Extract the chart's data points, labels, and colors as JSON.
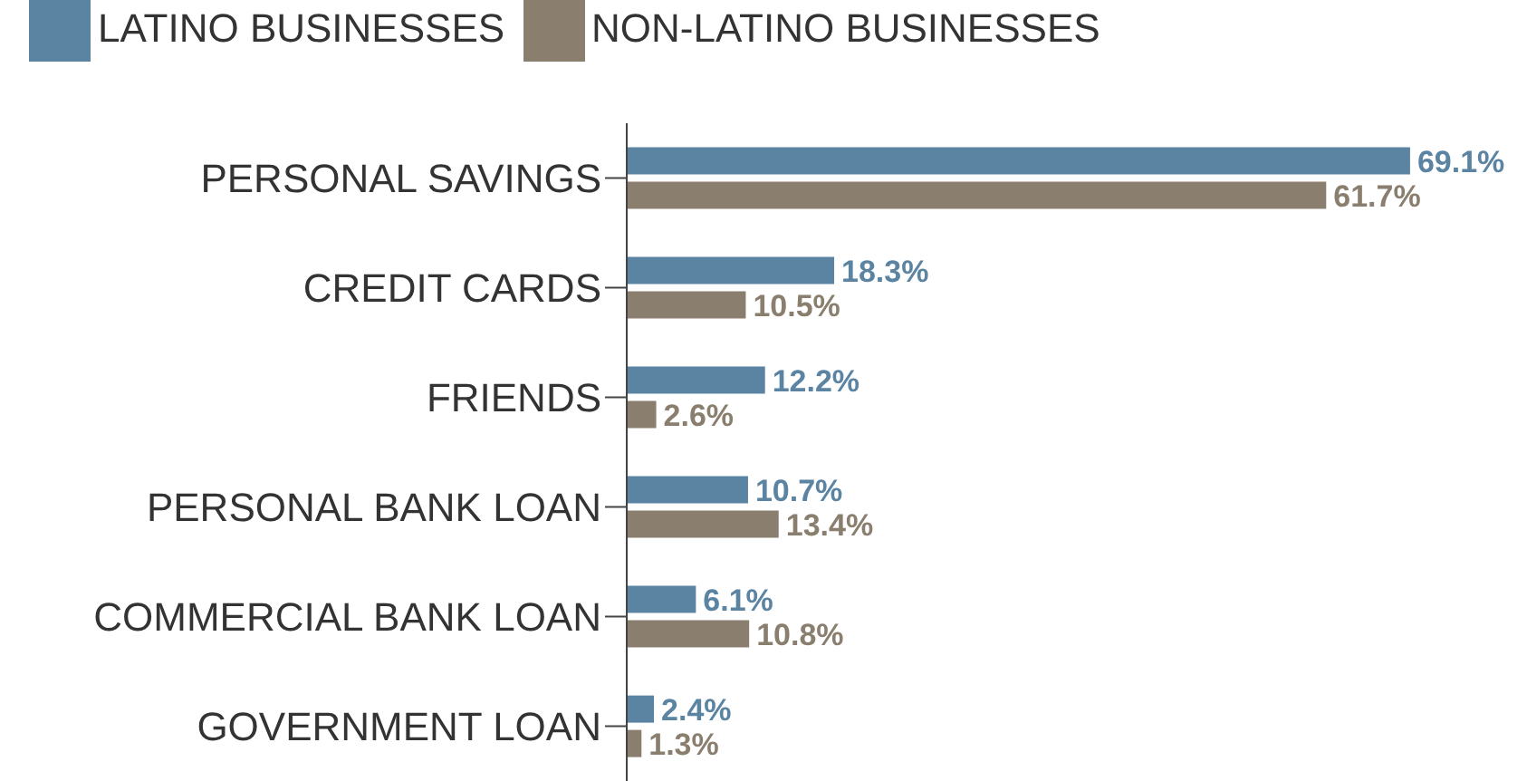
{
  "chart_data": {
    "type": "bar",
    "orientation": "horizontal",
    "legend": "top left",
    "categories": [
      "PERSONAL SAVINGS",
      "CREDIT CARDS",
      "FRIENDS",
      "PERSONAL BANK LOAN",
      "COMMERCIAL BANK LOAN",
      "GOVERNMENT LOAN"
    ],
    "series": [
      {
        "name": "LATINO BUSINESSES",
        "color": "#5b84a3",
        "values": [
          69.1,
          18.3,
          12.2,
          10.7,
          6.1,
          2.4
        ],
        "value_labels": [
          "69.1%",
          "18.3%",
          "12.2%",
          "10.7%",
          "6.1%",
          "2.4%"
        ]
      },
      {
        "name": "NON-LATINO BUSINESSES",
        "color": "#8a7f6e",
        "values": [
          61.7,
          10.5,
          2.6,
          13.4,
          10.8,
          1.3
        ],
        "value_labels": [
          "61.7%",
          "10.5%",
          "2.6%",
          "13.4%",
          "10.8%",
          "1.3%"
        ]
      }
    ]
  }
}
